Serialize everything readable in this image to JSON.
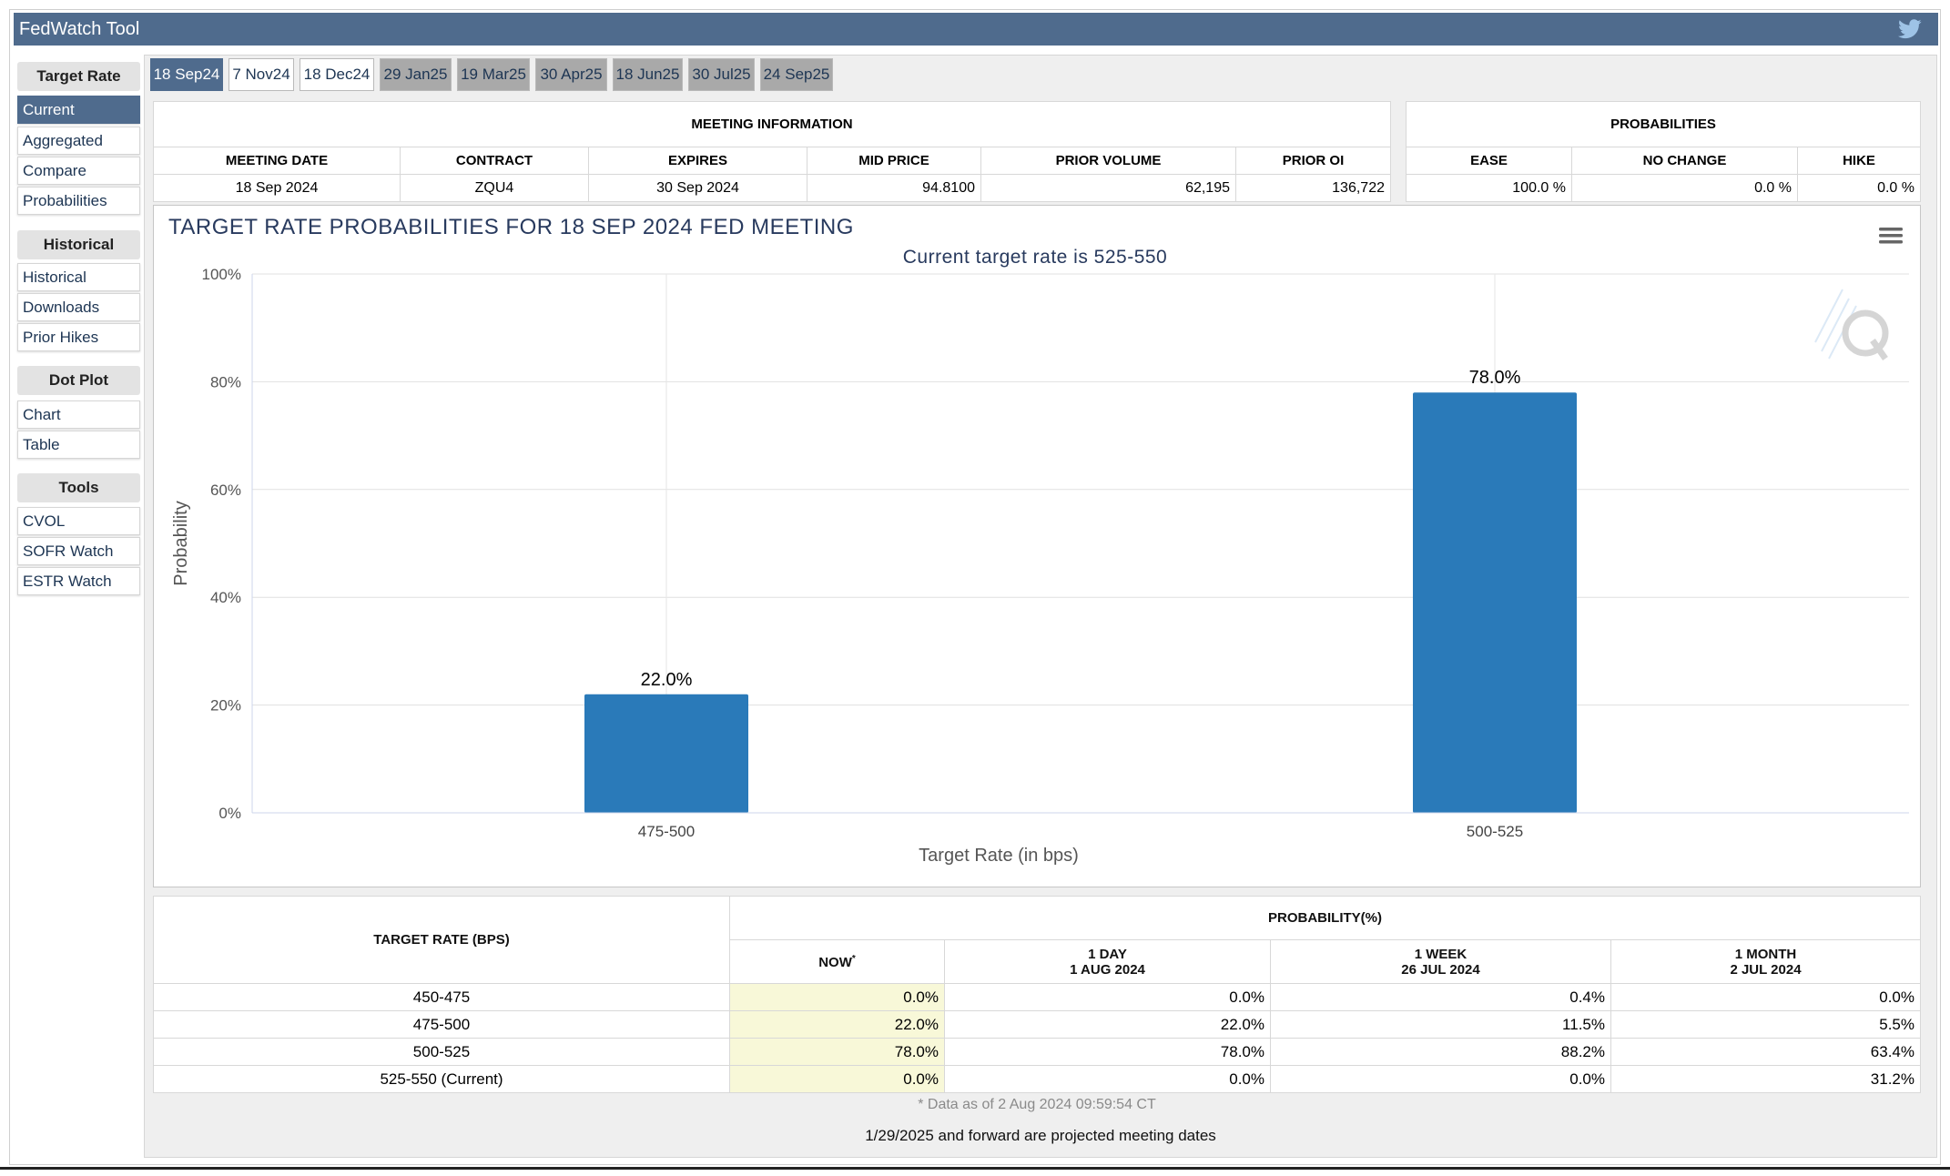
{
  "app": {
    "title": "FedWatch Tool"
  },
  "nav": {
    "sections": [
      {
        "heading": "Target Rate",
        "items": [
          "Current",
          "Aggregated",
          "Compare",
          "Probabilities"
        ]
      },
      {
        "heading": "Historical",
        "items": [
          "Historical",
          "Downloads",
          "Prior Hikes"
        ]
      },
      {
        "heading": "Dot Plot",
        "items": [
          "Chart",
          "Table"
        ]
      },
      {
        "heading": "Tools",
        "items": [
          "CVOL",
          "SOFR Watch",
          "ESTR Watch"
        ]
      }
    ],
    "active": "Current"
  },
  "tabs": [
    "18 Sep24",
    "7 Nov24",
    "18 Dec24",
    "29 Jan25",
    "19 Mar25",
    "30 Apr25",
    "18 Jun25",
    "30 Jul25",
    "24 Sep25"
  ],
  "meeting_info": {
    "title": "MEETING INFORMATION",
    "headers": [
      "MEETING DATE",
      "CONTRACT",
      "EXPIRES",
      "MID PRICE",
      "PRIOR VOLUME",
      "PRIOR OI"
    ],
    "values": [
      "18 Sep 2024",
      "ZQU4",
      "30 Sep 2024",
      "94.8100",
      "62,195",
      "136,722"
    ]
  },
  "probabilities": {
    "title": "PROBABILITIES",
    "headers": [
      "EASE",
      "NO CHANGE",
      "HIKE"
    ],
    "values": [
      "100.0 %",
      "0.0 %",
      "0.0 %"
    ]
  },
  "chart_data": {
    "type": "bar",
    "title": "TARGET RATE PROBABILITIES FOR 18 SEP 2024 FED MEETING",
    "subtitle": "Current target rate is 525-550",
    "xlabel": "Target Rate (in bps)",
    "ylabel": "Probability",
    "categories": [
      "475-500",
      "500-525"
    ],
    "values": [
      22.0,
      78.0
    ],
    "data_labels": [
      "22.0%",
      "78.0%"
    ],
    "ylim": [
      0,
      100
    ],
    "yticks": [
      "0%",
      "20%",
      "40%",
      "60%",
      "80%",
      "100%"
    ],
    "bar_color": "#2a7ab9",
    "grid": true
  },
  "prob_table": {
    "target_header": "TARGET RATE (BPS)",
    "prob_header": "PROBABILITY(%)",
    "col_now": "NOW",
    "col_now_mark": "*",
    "col_1day": [
      "1 DAY",
      "1 AUG 2024"
    ],
    "col_1week": [
      "1 WEEK",
      "26 JUL 2024"
    ],
    "col_1month": [
      "1 MONTH",
      "2 JUL 2024"
    ],
    "rows": [
      {
        "rate": "450-475",
        "now": "0.0%",
        "day": "0.0%",
        "week": "0.4%",
        "month": "0.0%"
      },
      {
        "rate": "475-500",
        "now": "22.0%",
        "day": "22.0%",
        "week": "11.5%",
        "month": "5.5%"
      },
      {
        "rate": "500-525",
        "now": "78.0%",
        "day": "78.0%",
        "week": "88.2%",
        "month": "63.4%"
      },
      {
        "rate": "525-550 (Current)",
        "now": "0.0%",
        "day": "0.0%",
        "week": "0.0%",
        "month": "31.2%"
      }
    ],
    "as_of": "* Data as of 2 Aug 2024 09:59:54 CT"
  },
  "footnote": "1/29/2025 and forward are projected meeting dates",
  "colors": {
    "header_blue": "#4f6b8d",
    "bar_blue": "#2a7ab9",
    "now_highlight": "#f8f8d8"
  },
  "icons": {
    "share": "twitter-bird-icon",
    "chart_menu": "hamburger-menu-icon",
    "watermark": "q-logo-icon"
  }
}
